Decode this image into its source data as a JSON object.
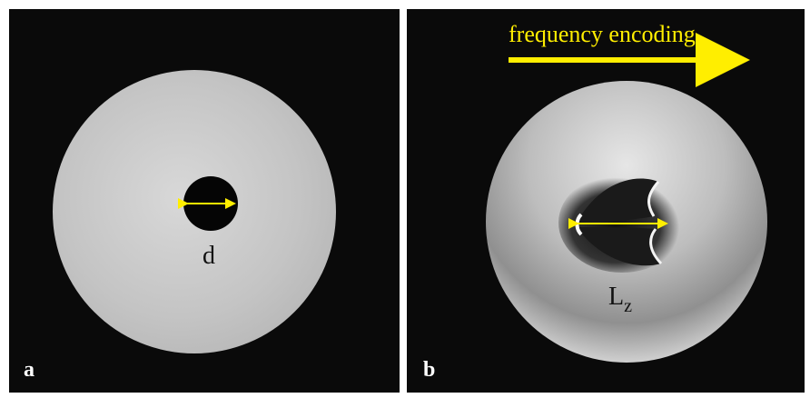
{
  "panels": [
    {
      "label": "a",
      "annotation": "d"
    },
    {
      "label": "b",
      "annotation": {
        "main": "L",
        "subscript": "z"
      },
      "caption": "frequency encoding"
    }
  ]
}
